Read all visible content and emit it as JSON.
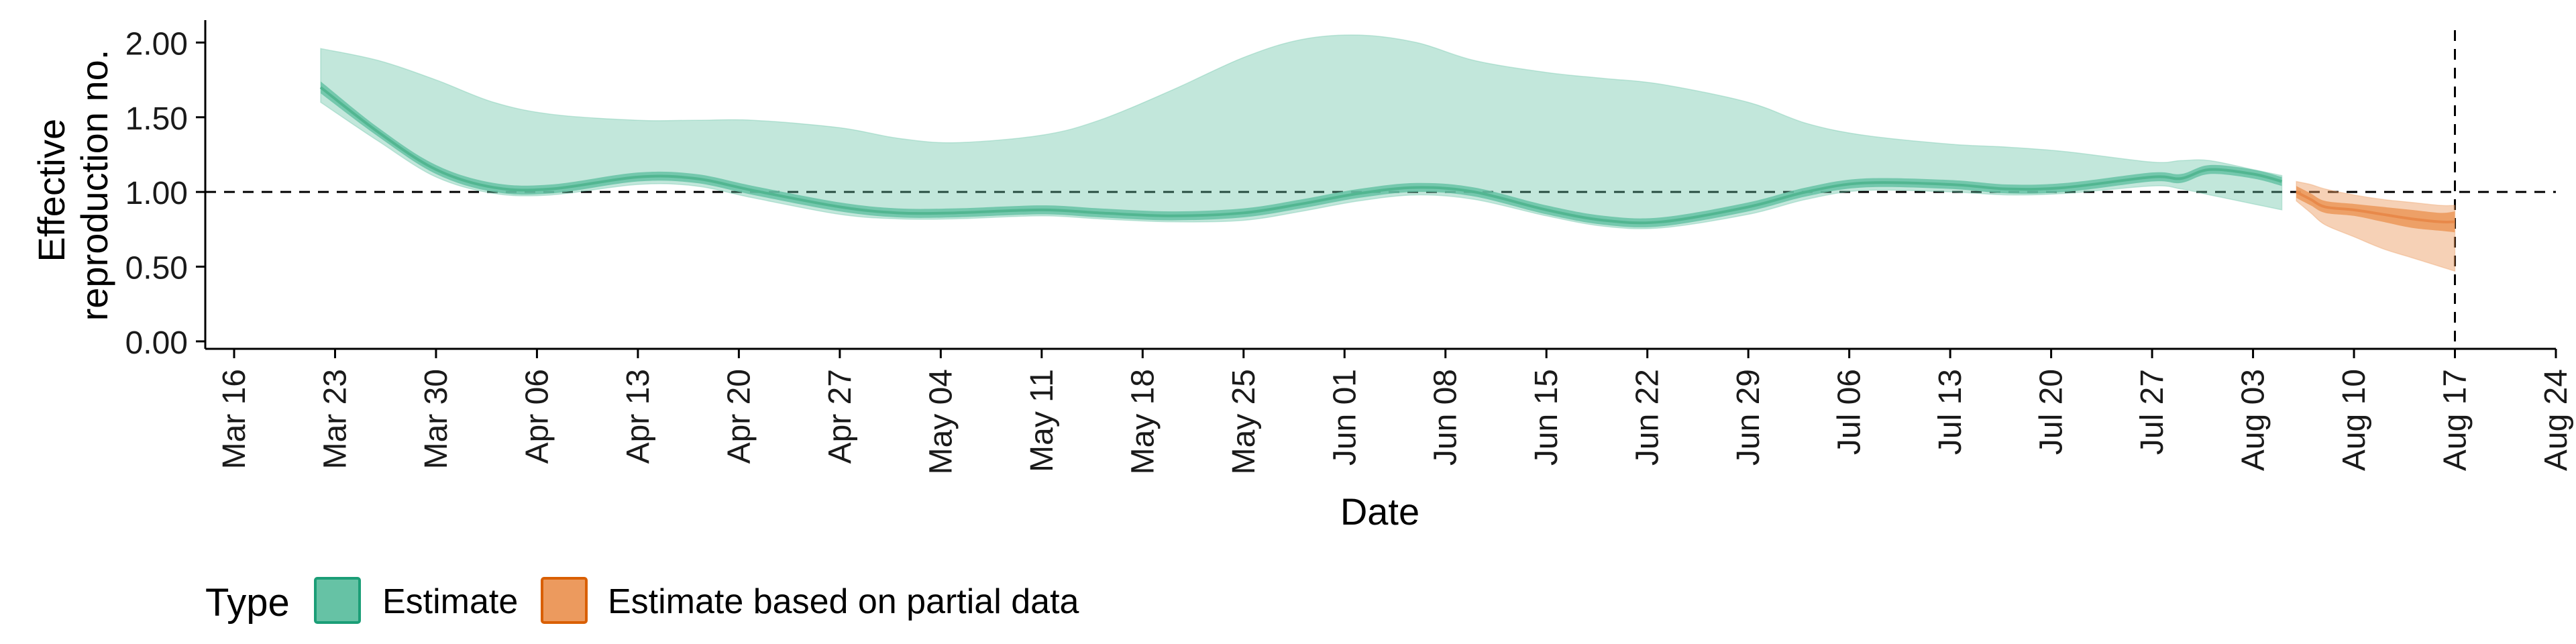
{
  "chart_data": {
    "type": "area",
    "xlabel": "Date",
    "ylabel": "Effective reproduction no.",
    "ylabel_lines": [
      "Effective",
      "reproduction no."
    ],
    "ylim": [
      -0.05,
      2.15
    ],
    "xlim": [
      "2020-03-14",
      "2020-08-24"
    ],
    "y_ticks": [
      "0.00",
      "0.50",
      "1.00",
      "1.50",
      "2.00"
    ],
    "x_ticks": [
      "Mar 16",
      "Mar 23",
      "Mar 30",
      "Apr 06",
      "Apr 13",
      "Apr 20",
      "Apr 27",
      "May 04",
      "May 11",
      "May 18",
      "May 25",
      "Jun 01",
      "Jun 08",
      "Jun 15",
      "Jun 22",
      "Jun 29",
      "Jul 06",
      "Jul 13",
      "Jul 20",
      "Jul 27",
      "Aug 03",
      "Aug 10",
      "Aug 17",
      "Aug 24"
    ],
    "x_tick_dates": [
      "2020-03-16",
      "2020-03-23",
      "2020-03-30",
      "2020-04-06",
      "2020-04-13",
      "2020-04-20",
      "2020-04-27",
      "2020-05-04",
      "2020-05-11",
      "2020-05-18",
      "2020-05-25",
      "2020-06-01",
      "2020-06-08",
      "2020-06-15",
      "2020-06-22",
      "2020-06-29",
      "2020-07-06",
      "2020-07-13",
      "2020-07-20",
      "2020-07-27",
      "2020-08-03",
      "2020-08-10",
      "2020-08-17",
      "2020-08-24"
    ],
    "reference_line_y": 1.0,
    "reference_line_x": "2020-08-17",
    "grid": false,
    "legend": {
      "position": "bottom-left",
      "title": "Type",
      "entries": [
        {
          "label": "Estimate",
          "color": "#66c2a5",
          "border": "#1b9e77"
        },
        {
          "label": "Estimate based on partial data",
          "color": "#ec9a5e",
          "border": "#d95f02"
        }
      ]
    },
    "series": [
      {
        "name": "Estimate",
        "fill_color": "#66c2a5",
        "line_color": "#52b691",
        "outer_opacity": 0.4,
        "inner_opacity": 0.85,
        "x": [
          "2020-03-22",
          "2020-03-26",
          "2020-03-30",
          "2020-04-03",
          "2020-04-07",
          "2020-04-13",
          "2020-04-17",
          "2020-04-21",
          "2020-04-27",
          "2020-05-01",
          "2020-05-05",
          "2020-05-11",
          "2020-05-15",
          "2020-05-20",
          "2020-05-25",
          "2020-05-29",
          "2020-06-02",
          "2020-06-06",
          "2020-06-10",
          "2020-06-15",
          "2020-06-19",
          "2020-06-23",
          "2020-06-29",
          "2020-07-03",
          "2020-07-07",
          "2020-07-13",
          "2020-07-17",
          "2020-07-21",
          "2020-07-27",
          "2020-07-29",
          "2020-07-31",
          "2020-08-03",
          "2020-08-05"
        ],
        "median": [
          1.7,
          1.4,
          1.15,
          1.03,
          1.02,
          1.1,
          1.09,
          1.01,
          0.9,
          0.86,
          0.86,
          0.88,
          0.86,
          0.84,
          0.86,
          0.92,
          0.99,
          1.03,
          1.0,
          0.88,
          0.81,
          0.8,
          0.9,
          1.0,
          1.06,
          1.05,
          1.02,
          1.03,
          1.1,
          1.09,
          1.15,
          1.12,
          1.07
        ],
        "inner_lo": [
          1.66,
          1.37,
          1.12,
          1.0,
          0.99,
          1.07,
          1.06,
          0.98,
          0.87,
          0.83,
          0.83,
          0.85,
          0.83,
          0.81,
          0.83,
          0.89,
          0.96,
          1.0,
          0.97,
          0.85,
          0.78,
          0.77,
          0.87,
          0.97,
          1.03,
          1.02,
          0.99,
          1.0,
          1.07,
          1.06,
          1.12,
          1.09,
          1.04
        ],
        "inner_hi": [
          1.74,
          1.43,
          1.18,
          1.06,
          1.05,
          1.13,
          1.12,
          1.04,
          0.93,
          0.89,
          0.89,
          0.91,
          0.89,
          0.87,
          0.89,
          0.95,
          1.02,
          1.06,
          1.03,
          0.91,
          0.84,
          0.83,
          0.93,
          1.03,
          1.09,
          1.08,
          1.05,
          1.06,
          1.13,
          1.12,
          1.18,
          1.15,
          1.1
        ],
        "outer_lo": [
          1.6,
          1.34,
          1.1,
          0.99,
          0.98,
          1.05,
          1.04,
          0.96,
          0.85,
          0.82,
          0.82,
          0.84,
          0.82,
          0.8,
          0.81,
          0.87,
          0.94,
          0.98,
          0.95,
          0.84,
          0.77,
          0.76,
          0.85,
          0.95,
          1.01,
          1.0,
          0.98,
          0.99,
          1.04,
          1.02,
          0.98,
          0.92,
          0.88
        ],
        "outer_hi": [
          1.96,
          1.88,
          1.75,
          1.6,
          1.52,
          1.48,
          1.48,
          1.48,
          1.43,
          1.36,
          1.33,
          1.38,
          1.48,
          1.68,
          1.9,
          2.02,
          2.05,
          2.0,
          1.88,
          1.8,
          1.76,
          1.72,
          1.6,
          1.46,
          1.38,
          1.32,
          1.3,
          1.27,
          1.2,
          1.21,
          1.21,
          1.15,
          1.11
        ]
      },
      {
        "name": "Estimate based on partial data",
        "fill_color": "#ec9a5e",
        "line_color": "#e8894a",
        "outer_opacity": 0.45,
        "inner_opacity": 0.9,
        "x": [
          "2020-08-06",
          "2020-08-07",
          "2020-08-08",
          "2020-08-10",
          "2020-08-12",
          "2020-08-14",
          "2020-08-16",
          "2020-08-17"
        ],
        "median": [
          1.0,
          0.95,
          0.9,
          0.88,
          0.85,
          0.82,
          0.8,
          0.8
        ],
        "inner_lo": [
          0.96,
          0.91,
          0.86,
          0.84,
          0.8,
          0.76,
          0.74,
          0.73
        ],
        "inner_hi": [
          1.04,
          0.99,
          0.94,
          0.92,
          0.9,
          0.88,
          0.86,
          0.87
        ],
        "outer_lo": [
          0.94,
          0.86,
          0.78,
          0.7,
          0.62,
          0.56,
          0.5,
          0.47
        ],
        "outer_hi": [
          1.07,
          1.05,
          1.02,
          0.98,
          0.95,
          0.93,
          0.91,
          0.91
        ]
      }
    ]
  }
}
